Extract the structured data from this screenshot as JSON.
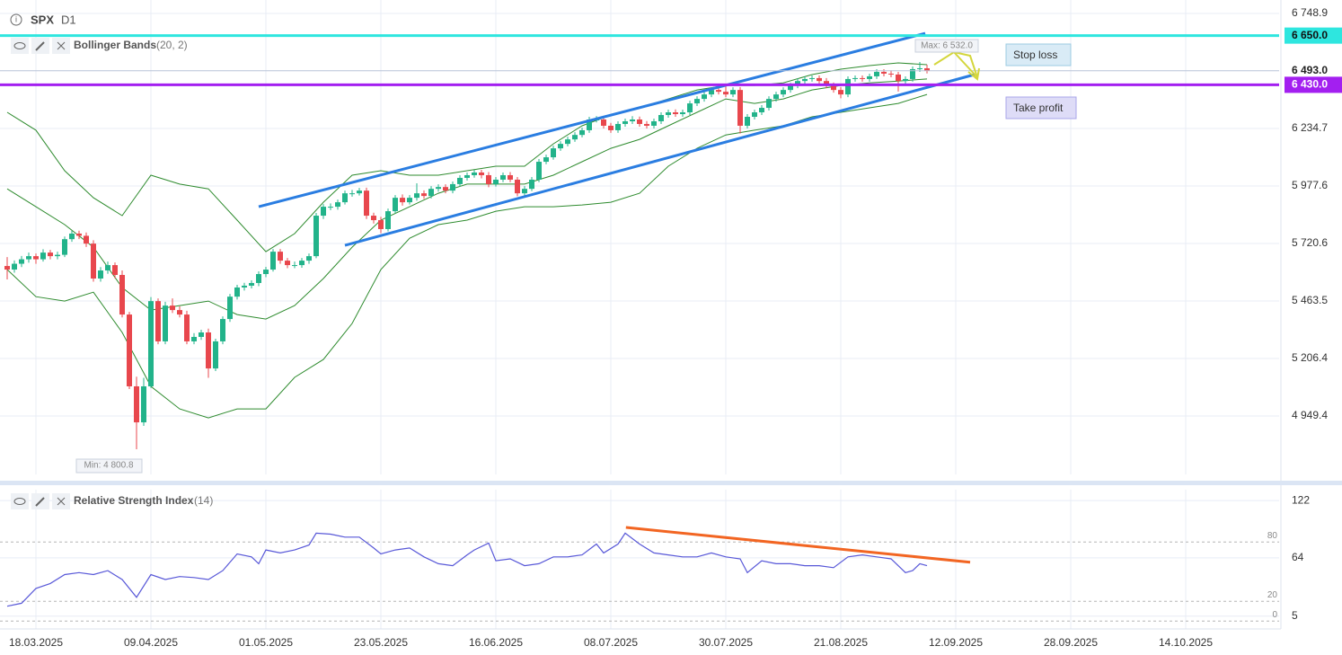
{
  "header": {
    "symbol": "SPX",
    "timeframe": "D1"
  },
  "chart_data": [
    {
      "type": "candlestick",
      "indicator": {
        "name": "Bollinger Bands",
        "params": "(20, 2)"
      },
      "up_color": "#22b38a",
      "down_color": "#e8474d",
      "xlim": [
        -1,
        177
      ],
      "ylim": [
        4688.3,
        6809.2
      ],
      "yticks": [
        {
          "value": 6748.9,
          "label": "6 748.9"
        },
        {
          "value": 6234.7,
          "label": "6 234.7"
        },
        {
          "value": 5977.6,
          "label": "5 977.6"
        },
        {
          "value": 5720.6,
          "label": "5 720.6"
        },
        {
          "value": 5463.5,
          "label": "5 463.5"
        },
        {
          "value": 5206.4,
          "label": "5 206.4"
        },
        {
          "value": 4949.4,
          "label": "4 949.4"
        }
      ],
      "grid": true,
      "candles": [
        [
          5620,
          5660,
          5560,
          5604
        ],
        [
          5604,
          5645,
          5590,
          5630
        ],
        [
          5630,
          5665,
          5615,
          5650
        ],
        [
          5650,
          5680,
          5635,
          5664
        ],
        [
          5664,
          5676,
          5630,
          5650
        ],
        [
          5650,
          5695,
          5640,
          5680
        ],
        [
          5680,
          5692,
          5650,
          5664
        ],
        [
          5664,
          5684,
          5650,
          5670
        ],
        [
          5670,
          5752,
          5660,
          5740
        ],
        [
          5740,
          5778,
          5728,
          5765
        ],
        [
          5765,
          5778,
          5740,
          5755
        ],
        [
          5755,
          5770,
          5705,
          5720
        ],
        [
          5720,
          5735,
          5550,
          5564
        ],
        [
          5564,
          5615,
          5550,
          5600
        ],
        [
          5600,
          5640,
          5585,
          5624
        ],
        [
          5624,
          5636,
          5565,
          5580
        ],
        [
          5580,
          5600,
          5390,
          5403
        ],
        [
          5403,
          5415,
          5070,
          5082
        ],
        [
          5082,
          5125,
          4800.8,
          4921
        ],
        [
          4921,
          5120,
          4905,
          5082
        ],
        [
          5082,
          5481,
          5075,
          5463
        ],
        [
          5463,
          5475,
          5270,
          5283
        ],
        [
          5283,
          5460,
          5270,
          5443
        ],
        [
          5443,
          5475,
          5410,
          5423
        ],
        [
          5423,
          5440,
          5390,
          5403
        ],
        [
          5403,
          5420,
          5270,
          5283
        ],
        [
          5283,
          5320,
          5270,
          5303
        ],
        [
          5303,
          5335,
          5290,
          5323
        ],
        [
          5323,
          5340,
          5120,
          5162
        ],
        [
          5162,
          5295,
          5150,
          5283
        ],
        [
          5283,
          5395,
          5270,
          5383
        ],
        [
          5383,
          5495,
          5370,
          5483
        ],
        [
          5483,
          5536,
          5470,
          5524
        ],
        [
          5524,
          5545,
          5510,
          5532
        ],
        [
          5532,
          5556,
          5520,
          5544
        ],
        [
          5544,
          5596,
          5530,
          5584
        ],
        [
          5584,
          5616,
          5570,
          5604
        ],
        [
          5604,
          5696,
          5595,
          5684
        ],
        [
          5684,
          5696,
          5630,
          5644
        ],
        [
          5644,
          5656,
          5610,
          5624
        ],
        [
          5624,
          5640,
          5610,
          5624
        ],
        [
          5624,
          5656,
          5612,
          5644
        ],
        [
          5644,
          5676,
          5630,
          5664
        ],
        [
          5664,
          5857,
          5655,
          5845
        ],
        [
          5845,
          5897,
          5830,
          5885
        ],
        [
          5885,
          5900,
          5870,
          5885
        ],
        [
          5885,
          5917,
          5872,
          5905
        ],
        [
          5905,
          5957,
          5895,
          5945
        ],
        [
          5945,
          5960,
          5930,
          5945
        ],
        [
          5945,
          5969,
          5935,
          5957
        ],
        [
          5957,
          5970,
          5830,
          5845
        ],
        [
          5845,
          5858,
          5810,
          5825
        ],
        [
          5825,
          5840,
          5767,
          5785
        ],
        [
          5785,
          5877,
          5775,
          5865
        ],
        [
          5865,
          5937,
          5855,
          5925
        ],
        [
          5925,
          5940,
          5890,
          5905
        ],
        [
          5905,
          5937,
          5895,
          5925
        ],
        [
          5925,
          5990,
          5912,
          5945
        ],
        [
          5945,
          5958,
          5920,
          5933
        ],
        [
          5933,
          5977,
          5922,
          5965
        ],
        [
          5965,
          5985,
          5952,
          5973
        ],
        [
          5973,
          5985,
          5945,
          5957
        ],
        [
          5957,
          5998,
          5945,
          5986
        ],
        [
          5986,
          6026,
          5975,
          6014
        ],
        [
          6014,
          6038,
          6002,
          6026
        ],
        [
          6026,
          6050,
          6015,
          6038
        ],
        [
          6038,
          6050,
          6012,
          6026
        ],
        [
          6026,
          6040,
          5972,
          5986
        ],
        [
          5986,
          6018,
          5975,
          6006
        ],
        [
          6006,
          6038,
          5995,
          6026
        ],
        [
          6026,
          6040,
          5995,
          6006
        ],
        [
          6006,
          6018,
          5932,
          5945
        ],
        [
          5945,
          5977,
          5935,
          5965
        ],
        [
          5965,
          6018,
          5955,
          6006
        ],
        [
          6006,
          6098,
          5995,
          6086
        ],
        [
          6086,
          6118,
          6075,
          6106
        ],
        [
          6106,
          6158,
          6095,
          6146
        ],
        [
          6146,
          6178,
          6135,
          6166
        ],
        [
          6166,
          6198,
          6155,
          6186
        ],
        [
          6186,
          6218,
          6175,
          6206
        ],
        [
          6206,
          6239,
          6195,
          6227
        ],
        [
          6227,
          6287,
          6215,
          6275
        ],
        [
          6275,
          6290,
          6262,
          6275
        ],
        [
          6275,
          6288,
          6235,
          6247
        ],
        [
          6247,
          6260,
          6215,
          6227
        ],
        [
          6227,
          6267,
          6215,
          6255
        ],
        [
          6255,
          6279,
          6243,
          6267
        ],
        [
          6267,
          6290,
          6255,
          6275
        ],
        [
          6275,
          6288,
          6243,
          6255
        ],
        [
          6255,
          6268,
          6235,
          6247
        ],
        [
          6247,
          6279,
          6235,
          6267
        ],
        [
          6267,
          6307,
          6255,
          6295
        ],
        [
          6295,
          6319,
          6283,
          6307
        ],
        [
          6307,
          6320,
          6287,
          6299
        ],
        [
          6299,
          6319,
          6287,
          6307
        ],
        [
          6307,
          6359,
          6295,
          6347
        ],
        [
          6347,
          6379,
          6335,
          6367
        ],
        [
          6367,
          6399,
          6355,
          6387
        ],
        [
          6387,
          6419,
          6375,
          6407
        ],
        [
          6407,
          6420,
          6387,
          6399
        ],
        [
          6399,
          6427,
          6375,
          6387
        ],
        [
          6387,
          6419,
          6375,
          6407
        ],
        [
          6407,
          6420,
          6212,
          6247
        ],
        [
          6247,
          6299,
          6235,
          6287
        ],
        [
          6287,
          6319,
          6275,
          6307
        ],
        [
          6307,
          6339,
          6295,
          6327
        ],
        [
          6327,
          6379,
          6315,
          6367
        ],
        [
          6367,
          6399,
          6355,
          6387
        ],
        [
          6387,
          6419,
          6375,
          6407
        ],
        [
          6407,
          6439,
          6395,
          6427
        ],
        [
          6427,
          6459,
          6415,
          6447
        ],
        [
          6447,
          6468,
          6435,
          6456
        ],
        [
          6456,
          6472,
          6444,
          6460
        ],
        [
          6460,
          6472,
          6435,
          6447
        ],
        [
          6447,
          6460,
          6415,
          6427
        ],
        [
          6427,
          6440,
          6395,
          6407
        ],
        [
          6407,
          6420,
          6370,
          6387
        ],
        [
          6387,
          6468,
          6375,
          6456
        ],
        [
          6456,
          6472,
          6444,
          6460
        ],
        [
          6460,
          6472,
          6444,
          6456
        ],
        [
          6456,
          6480,
          6444,
          6468
        ],
        [
          6468,
          6500,
          6456,
          6488
        ],
        [
          6488,
          6500,
          6468,
          6480
        ],
        [
          6480,
          6495,
          6464,
          6476
        ],
        [
          6476,
          6488,
          6400,
          6447
        ],
        [
          6447,
          6468,
          6430,
          6456
        ],
        [
          6456,
          6512,
          6444,
          6500
        ],
        [
          6500,
          6532,
          6488,
          6504
        ],
        [
          6504,
          6520,
          6481,
          6493
        ]
      ],
      "bands": {
        "color": "#2e8b2e",
        "x": [
          0,
          4,
          8,
          12,
          16,
          20,
          24,
          28,
          32,
          36,
          40,
          44,
          48,
          52,
          56,
          60,
          64,
          68,
          72,
          76,
          80,
          84,
          88,
          92,
          96,
          100,
          104,
          108,
          112,
          116,
          120,
          124,
          128
        ],
        "upper": [
          6307,
          6227,
          6046,
          5925,
          5845,
          6026,
          5986,
          5965,
          5825,
          5684,
          5765,
          5905,
          6026,
          6046,
          6026,
          6026,
          6046,
          6066,
          6066,
          6166,
          6247,
          6295,
          6327,
          6367,
          6407,
          6427,
          6427,
          6439,
          6476,
          6500,
          6516,
          6528,
          6520
        ],
        "middle": [
          5965,
          5885,
          5805,
          5704,
          5524,
          5423,
          5443,
          5463,
          5403,
          5383,
          5443,
          5564,
          5704,
          5825,
          5885,
          5945,
          5986,
          5986,
          5986,
          6026,
          6086,
          6146,
          6186,
          6247,
          6307,
          6367,
          6347,
          6367,
          6407,
          6427,
          6439,
          6447,
          6456
        ],
        "lower": [
          5604,
          5483,
          5463,
          5503,
          5323,
          5082,
          4981,
          4941,
          4981,
          4981,
          5122,
          5202,
          5363,
          5604,
          5744,
          5805,
          5825,
          5865,
          5885,
          5885,
          5893,
          5905,
          5945,
          6066,
          6146,
          6206,
          6227,
          6247,
          6287,
          6307,
          6327,
          6347,
          6387
        ]
      },
      "trendlines": [
        {
          "x": [
            35,
            127.75
          ],
          "y": [
            5885,
            6660
          ],
          "color": "#2a7de1"
        },
        {
          "x": [
            47,
            134.6
          ],
          "y": [
            5712,
            6476
          ],
          "color": "#2a7de1"
        }
      ],
      "levels": [
        {
          "value": 6650,
          "label": "6 650.0",
          "color": "#2ee6df"
        },
        {
          "value": 6430,
          "label": "6 430.0",
          "color": "#a31ff0"
        }
      ],
      "current_price": {
        "value": 6493,
        "label": "6 493.0"
      },
      "max": {
        "value": 6532,
        "label": "Max: 6 532.0"
      },
      "min": {
        "value": 4800.8,
        "label": "Min: 4 800.8"
      },
      "annotations": [
        {
          "text": "Stop loss"
        },
        {
          "text": "Take profit"
        }
      ]
    },
    {
      "type": "line",
      "indicator": {
        "name": "Relative Strength Index",
        "params": "(14)"
      },
      "color": "#5858d8",
      "xlim": [
        -1,
        177
      ],
      "xticks": [
        {
          "value": 4,
          "label": "18.03.2025"
        },
        {
          "value": 20,
          "label": "09.04.2025"
        },
        {
          "value": 36,
          "label": "01.05.2025"
        },
        {
          "value": 52,
          "label": "23.05.2025"
        },
        {
          "value": 68,
          "label": "16.06.2025"
        },
        {
          "value": 84,
          "label": "08.07.2025"
        },
        {
          "value": 100,
          "label": "30.07.2025"
        },
        {
          "value": 116,
          "label": "21.08.2025"
        },
        {
          "value": 132,
          "label": "12.09.2025"
        },
        {
          "value": 148,
          "label": "28.09.2025"
        },
        {
          "value": 164,
          "label": "14.10.2025"
        }
      ],
      "ylim": [
        -8,
        133
      ],
      "yticks": [
        122,
        64,
        5
      ],
      "levels": [
        80,
        20,
        0
      ],
      "x": [
        0,
        2,
        4,
        6,
        8,
        10,
        12,
        14,
        16,
        18,
        20,
        22,
        24,
        26,
        28,
        30,
        32,
        34,
        35,
        36,
        38,
        40,
        42,
        43,
        45,
        47,
        49,
        51,
        52,
        54,
        56,
        58,
        60,
        62,
        64,
        65,
        67,
        68,
        70,
        72,
        74,
        76,
        78,
        80,
        82,
        83,
        85,
        86,
        88,
        90,
        92,
        94,
        96,
        98,
        100,
        102,
        103,
        105,
        107,
        109,
        111,
        113,
        115,
        117,
        119,
        121,
        123,
        125,
        126,
        127,
        128
      ],
      "values": [
        15,
        18,
        33,
        38,
        47,
        49,
        47,
        51,
        42,
        24,
        47,
        42,
        45,
        44,
        42,
        51,
        68,
        65,
        58,
        72,
        69,
        72,
        77,
        89,
        88,
        85,
        85,
        74,
        68,
        72,
        74,
        65,
        58,
        56,
        67,
        72,
        79,
        61,
        63,
        56,
        58,
        65,
        65,
        67,
        78,
        69,
        78,
        89,
        78,
        69,
        67,
        65,
        65,
        69,
        65,
        63,
        49,
        61,
        58,
        58,
        56,
        56,
        54,
        65,
        67,
        65,
        63,
        49,
        51,
        58,
        56
      ],
      "trendline": {
        "x": [
          86.1,
          134
        ],
        "y": [
          94.8,
          59.5
        ],
        "color": "#f26522"
      }
    }
  ]
}
